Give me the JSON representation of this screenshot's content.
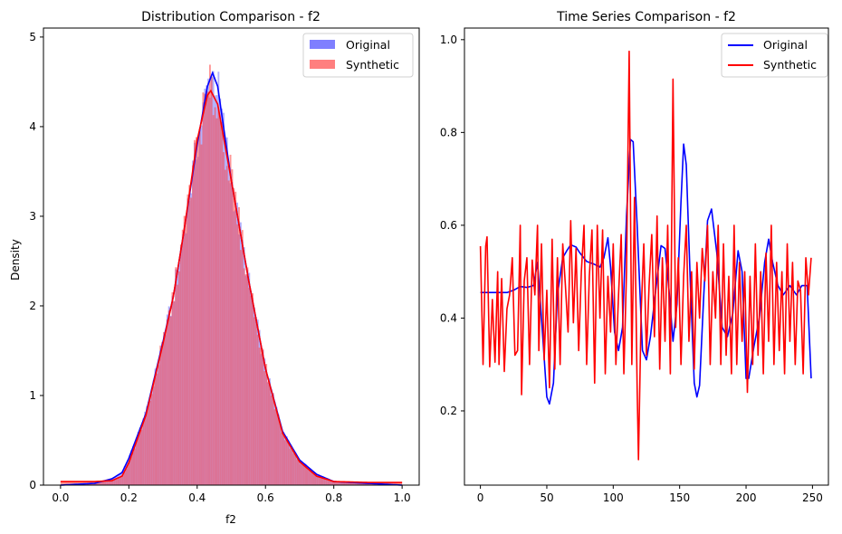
{
  "chart_data": [
    {
      "type": "bar",
      "title": "Distribution Comparison - f2",
      "xlabel": "f2",
      "ylabel": "Density",
      "xlim": [
        -0.05,
        1.05
      ],
      "ylim": [
        0,
        5.1
      ],
      "x_ticks": [
        "0.0",
        "0.2",
        "0.4",
        "0.6",
        "0.8",
        "1.0"
      ],
      "y_ticks": [
        "0",
        "1",
        "2",
        "3",
        "4",
        "5"
      ],
      "legend_position": "top-right",
      "grid": false,
      "series": [
        {
          "name": "Original",
          "kind": "histogram+kde",
          "hist_color": "#7f7fff",
          "kde_color": "#0000ff",
          "mean": 0.44,
          "peak_density": 4.6
        },
        {
          "name": "Synthetic",
          "kind": "histogram+kde",
          "hist_color": "#ff7f7f",
          "kde_color": "#ff0000",
          "mean": 0.44,
          "peak_density": 4.4,
          "baseline_density": 0.04
        }
      ],
      "overlap_color": "#a0275a",
      "kde_points": {
        "original": [
          [
            0.0,
            0.0
          ],
          [
            0.1,
            0.02
          ],
          [
            0.15,
            0.07
          ],
          [
            0.18,
            0.14
          ],
          [
            0.2,
            0.3
          ],
          [
            0.25,
            0.8
          ],
          [
            0.3,
            1.6
          ],
          [
            0.33,
            2.1
          ],
          [
            0.36,
            2.8
          ],
          [
            0.4,
            3.8
          ],
          [
            0.43,
            4.45
          ],
          [
            0.445,
            4.6
          ],
          [
            0.46,
            4.45
          ],
          [
            0.5,
            3.4
          ],
          [
            0.55,
            2.3
          ],
          [
            0.6,
            1.3
          ],
          [
            0.65,
            0.6
          ],
          [
            0.7,
            0.28
          ],
          [
            0.75,
            0.12
          ],
          [
            0.8,
            0.04
          ],
          [
            0.9,
            0.02
          ],
          [
            1.0,
            0.0
          ]
        ],
        "synthetic": [
          [
            0.0,
            0.04
          ],
          [
            0.1,
            0.04
          ],
          [
            0.15,
            0.05
          ],
          [
            0.18,
            0.1
          ],
          [
            0.2,
            0.25
          ],
          [
            0.25,
            0.78
          ],
          [
            0.3,
            1.58
          ],
          [
            0.33,
            2.1
          ],
          [
            0.36,
            2.8
          ],
          [
            0.4,
            3.85
          ],
          [
            0.43,
            4.35
          ],
          [
            0.44,
            4.4
          ],
          [
            0.46,
            4.25
          ],
          [
            0.5,
            3.4
          ],
          [
            0.55,
            2.3
          ],
          [
            0.6,
            1.3
          ],
          [
            0.65,
            0.58
          ],
          [
            0.7,
            0.26
          ],
          [
            0.75,
            0.1
          ],
          [
            0.8,
            0.04
          ],
          [
            0.9,
            0.03
          ],
          [
            1.0,
            0.03
          ]
        ]
      }
    },
    {
      "type": "line",
      "title": "Time Series Comparison - f2",
      "xlim": [
        -12,
        262
      ],
      "ylim": [
        0.04,
        1.025
      ],
      "x_ticks": [
        "0",
        "50",
        "100",
        "150",
        "200",
        "250"
      ],
      "y_ticks": [
        "0.2",
        "0.4",
        "0.6",
        "0.8",
        "1.0"
      ],
      "legend_position": "top-right",
      "grid": false,
      "series": [
        {
          "name": "Original",
          "color": "#0000ff",
          "points": [
            [
              0,
              0.455
            ],
            [
              10,
              0.455
            ],
            [
              20,
              0.455
            ],
            [
              25,
              0.46
            ],
            [
              30,
              0.468
            ],
            [
              35,
              0.466
            ],
            [
              40,
              0.47
            ],
            [
              43,
              0.52
            ],
            [
              46,
              0.4
            ],
            [
              50,
              0.23
            ],
            [
              52,
              0.215
            ],
            [
              55,
              0.26
            ],
            [
              58,
              0.45
            ],
            [
              62,
              0.53
            ],
            [
              65,
              0.545
            ],
            [
              68,
              0.558
            ],
            [
              72,
              0.553
            ],
            [
              75,
              0.54
            ],
            [
              80,
              0.522
            ],
            [
              85,
              0.517
            ],
            [
              90,
              0.51
            ],
            [
              93,
              0.53
            ],
            [
              96,
              0.573
            ],
            [
              98,
              0.51
            ],
            [
              101,
              0.37
            ],
            [
              104,
              0.33
            ],
            [
              107,
              0.38
            ],
            [
              110,
              0.62
            ],
            [
              113,
              0.785
            ],
            [
              115,
              0.78
            ],
            [
              118,
              0.6
            ],
            [
              122,
              0.33
            ],
            [
              125,
              0.31
            ],
            [
              128,
              0.36
            ],
            [
              132,
              0.46
            ],
            [
              136,
              0.556
            ],
            [
              139,
              0.55
            ],
            [
              142,
              0.46
            ],
            [
              145,
              0.35
            ],
            [
              148,
              0.43
            ],
            [
              151,
              0.65
            ],
            [
              153,
              0.775
            ],
            [
              155,
              0.73
            ],
            [
              158,
              0.48
            ],
            [
              161,
              0.26
            ],
            [
              163,
              0.23
            ],
            [
              165,
              0.255
            ],
            [
              168,
              0.44
            ],
            [
              171,
              0.61
            ],
            [
              174,
              0.635
            ],
            [
              178,
              0.54
            ],
            [
              182,
              0.38
            ],
            [
              186,
              0.36
            ],
            [
              190,
              0.41
            ],
            [
              194,
              0.545
            ],
            [
              197,
              0.5
            ],
            [
              200,
              0.27
            ],
            [
              202,
              0.27
            ],
            [
              206,
              0.34
            ],
            [
              210,
              0.4
            ],
            [
              214,
              0.52
            ],
            [
              217,
              0.57
            ],
            [
              220,
              0.52
            ],
            [
              224,
              0.47
            ],
            [
              228,
              0.45
            ],
            [
              233,
              0.47
            ],
            [
              238,
              0.45
            ],
            [
              242,
              0.47
            ],
            [
              246,
              0.47
            ],
            [
              249,
              0.27
            ]
          ]
        },
        {
          "name": "Synthetic",
          "color": "#ff0000",
          "points": [
            [
              0,
              0.555
            ],
            [
              2,
              0.3
            ],
            [
              4,
              0.555
            ],
            [
              5,
              0.575
            ],
            [
              7,
              0.295
            ],
            [
              9,
              0.44
            ],
            [
              11,
              0.305
            ],
            [
              13,
              0.5
            ],
            [
              14,
              0.3
            ],
            [
              16,
              0.485
            ],
            [
              18,
              0.285
            ],
            [
              20,
              0.42
            ],
            [
              22,
              0.45
            ],
            [
              24,
              0.53
            ],
            [
              26,
              0.32
            ],
            [
              28,
              0.33
            ],
            [
              30,
              0.6
            ],
            [
              31,
              0.235
            ],
            [
              33,
              0.48
            ],
            [
              35,
              0.53
            ],
            [
              37,
              0.3
            ],
            [
              39,
              0.525
            ],
            [
              41,
              0.45
            ],
            [
              43,
              0.6
            ],
            [
              44,
              0.33
            ],
            [
              46,
              0.56
            ],
            [
              48,
              0.31
            ],
            [
              50,
              0.46
            ],
            [
              52,
              0.25
            ],
            [
              54,
              0.57
            ],
            [
              56,
              0.29
            ],
            [
              58,
              0.53
            ],
            [
              60,
              0.3
            ],
            [
              62,
              0.56
            ],
            [
              64,
              0.47
            ],
            [
              66,
              0.37
            ],
            [
              68,
              0.61
            ],
            [
              70,
              0.39
            ],
            [
              72,
              0.55
            ],
            [
              74,
              0.33
            ],
            [
              76,
              0.5
            ],
            [
              78,
              0.6
            ],
            [
              80,
              0.3
            ],
            [
              82,
              0.49
            ],
            [
              84,
              0.59
            ],
            [
              86,
              0.26
            ],
            [
              88,
              0.6
            ],
            [
              90,
              0.4
            ],
            [
              92,
              0.59
            ],
            [
              94,
              0.28
            ],
            [
              96,
              0.49
            ],
            [
              98,
              0.37
            ],
            [
              100,
              0.56
            ],
            [
              102,
              0.3
            ],
            [
              104,
              0.45
            ],
            [
              106,
              0.58
            ],
            [
              108,
              0.28
            ],
            [
              110,
              0.5
            ],
            [
              112,
              0.975
            ],
            [
              114,
              0.3
            ],
            [
              116,
              0.66
            ],
            [
              118,
              0.25
            ],
            [
              119,
              0.095
            ],
            [
              121,
              0.41
            ],
            [
              123,
              0.56
            ],
            [
              125,
              0.32
            ],
            [
              127,
              0.47
            ],
            [
              129,
              0.58
            ],
            [
              131,
              0.36
            ],
            [
              133,
              0.62
            ],
            [
              135,
              0.29
            ],
            [
              137,
              0.53
            ],
            [
              139,
              0.35
            ],
            [
              141,
              0.6
            ],
            [
              143,
              0.28
            ],
            [
              145,
              0.915
            ],
            [
              147,
              0.38
            ],
            [
              149,
              0.53
            ],
            [
              151,
              0.3
            ],
            [
              153,
              0.49
            ],
            [
              155,
              0.6
            ],
            [
              157,
              0.35
            ],
            [
              159,
              0.5
            ],
            [
              161,
              0.29
            ],
            [
              163,
              0.52
            ],
            [
              165,
              0.4
            ],
            [
              167,
              0.55
            ],
            [
              169,
              0.48
            ],
            [
              171,
              0.6
            ],
            [
              173,
              0.3
            ],
            [
              175,
              0.5
            ],
            [
              177,
              0.4
            ],
            [
              179,
              0.6
            ],
            [
              181,
              0.3
            ],
            [
              183,
              0.56
            ],
            [
              185,
              0.32
            ],
            [
              187,
              0.49
            ],
            [
              189,
              0.28
            ],
            [
              191,
              0.6
            ],
            [
              193,
              0.3
            ],
            [
              195,
              0.52
            ],
            [
              197,
              0.35
            ],
            [
              199,
              0.5
            ],
            [
              201,
              0.24
            ],
            [
              203,
              0.49
            ],
            [
              205,
              0.3
            ],
            [
              207,
              0.56
            ],
            [
              209,
              0.32
            ],
            [
              211,
              0.5
            ],
            [
              213,
              0.28
            ],
            [
              215,
              0.54
            ],
            [
              217,
              0.35
            ],
            [
              219,
              0.6
            ],
            [
              221,
              0.3
            ],
            [
              223,
              0.52
            ],
            [
              225,
              0.33
            ],
            [
              227,
              0.5
            ],
            [
              229,
              0.28
            ],
            [
              231,
              0.56
            ],
            [
              233,
              0.35
            ],
            [
              235,
              0.52
            ],
            [
              237,
              0.3
            ],
            [
              239,
              0.48
            ],
            [
              241,
              0.46
            ],
            [
              243,
              0.28
            ],
            [
              245,
              0.53
            ],
            [
              247,
              0.45
            ],
            [
              249,
              0.53
            ]
          ]
        }
      ]
    }
  ]
}
